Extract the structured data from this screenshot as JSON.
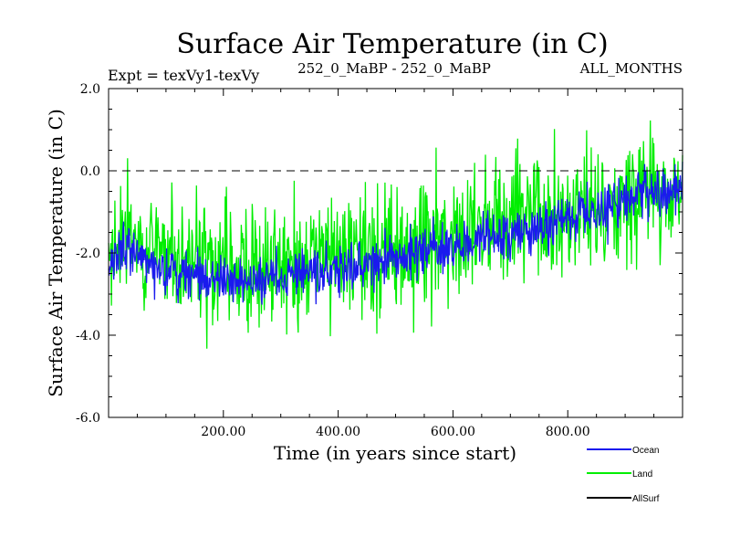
{
  "chart_data": {
    "type": "line",
    "title": "Surface Air Temperature (in C)",
    "subtitle_left": "Expt = texVy1-texVy",
    "subtitle_center": "252_0_MaBP - 252_0_MaBP",
    "subtitle_right": "ALL_MONTHS",
    "xlabel": "Time (in years since start)",
    "ylabel": "Surface Air Temperature (in C)",
    "xlim": [
      0,
      1000
    ],
    "ylim": [
      -6.0,
      2.0
    ],
    "x_ticks": [
      200,
      400,
      600,
      800
    ],
    "x_tick_labels": [
      "200.00",
      "400.00",
      "600.00",
      "800.00"
    ],
    "y_ticks": [
      -6,
      -4,
      -2,
      0,
      2
    ],
    "y_tick_labels": [
      "-6.0",
      "-4.0",
      "-2.0",
      "0.0",
      "2.0"
    ],
    "reference_line": 0.0,
    "series": [
      {
        "name": "Land",
        "color": "#00ee00",
        "trend": {
          "x": [
            0,
            20,
            50,
            100,
            200,
            300,
            400,
            500,
            600,
            700,
            800,
            900,
            1000
          ],
          "y": [
            -2.3,
            -1.5,
            -1.6,
            -2.2,
            -2.3,
            -2.3,
            -2.1,
            -1.9,
            -1.6,
            -1.3,
            -1.0,
            -0.6,
            -0.3
          ]
        },
        "amplitude": 0.75
      },
      {
        "name": "Ocean",
        "color": "#1a1aee",
        "trend": {
          "x": [
            0,
            20,
            50,
            100,
            200,
            300,
            400,
            500,
            600,
            700,
            800,
            900,
            1000
          ],
          "y": [
            -2.6,
            -1.8,
            -2.0,
            -2.5,
            -2.7,
            -2.6,
            -2.4,
            -2.1,
            -1.8,
            -1.5,
            -1.2,
            -0.8,
            -0.4
          ]
        },
        "amplitude": 0.3
      },
      {
        "name": "AllSurf",
        "color": "#000000"
      }
    ],
    "legend": [
      "Ocean",
      "Land",
      "AllSurf"
    ],
    "legend_position": "bottom-right"
  }
}
